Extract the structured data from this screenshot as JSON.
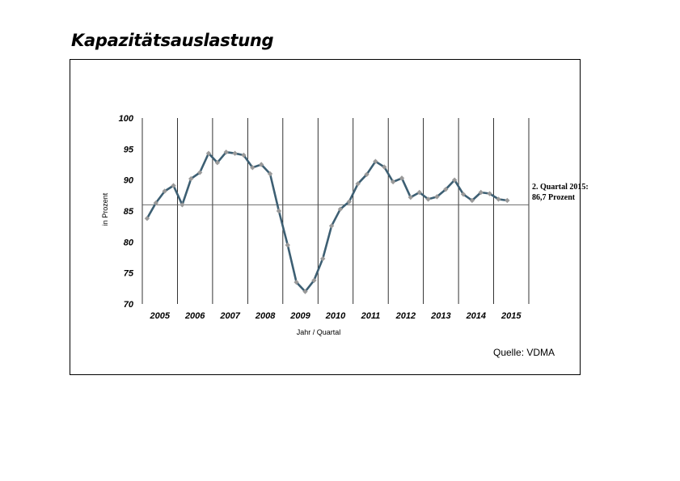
{
  "title": "Kapazitätsauslastung",
  "chart_data": {
    "type": "line",
    "xlabel": "Jahr / Quartal",
    "ylabel": "in Prozent",
    "ylim": [
      70,
      100
    ],
    "yticks": [
      "100",
      "95",
      "90",
      "85",
      "80",
      "75",
      "70"
    ],
    "years": [
      "2005",
      "2006",
      "2007",
      "2008",
      "2009",
      "2010",
      "2011",
      "2012",
      "2013",
      "2014",
      "2015"
    ],
    "reference_line": 86,
    "grid": "vertical year separators",
    "series": [
      {
        "values": [
          83.8,
          86.3,
          88.2,
          89.1,
          86.0,
          90.2,
          91.2,
          94.3,
          92.8,
          94.5,
          94.3,
          94.0,
          92.0,
          92.5,
          91.0,
          85.0,
          79.5,
          73.5,
          72.0,
          73.8,
          77.3,
          82.6,
          85.3,
          86.5,
          89.4,
          90.9,
          93.0,
          92.1,
          89.7,
          90.3,
          87.2,
          88.0,
          86.9,
          87.3,
          88.5,
          90.0,
          87.7,
          86.7,
          88.0,
          87.8,
          86.9,
          86.7
        ]
      }
    ],
    "annotation_line1": "2. Quartal 2015:",
    "annotation_line2": "86,7 Prozent",
    "source": "Quelle: VDMA",
    "line_color": "#3d5f73",
    "marker_color": "#9a9a9a"
  }
}
